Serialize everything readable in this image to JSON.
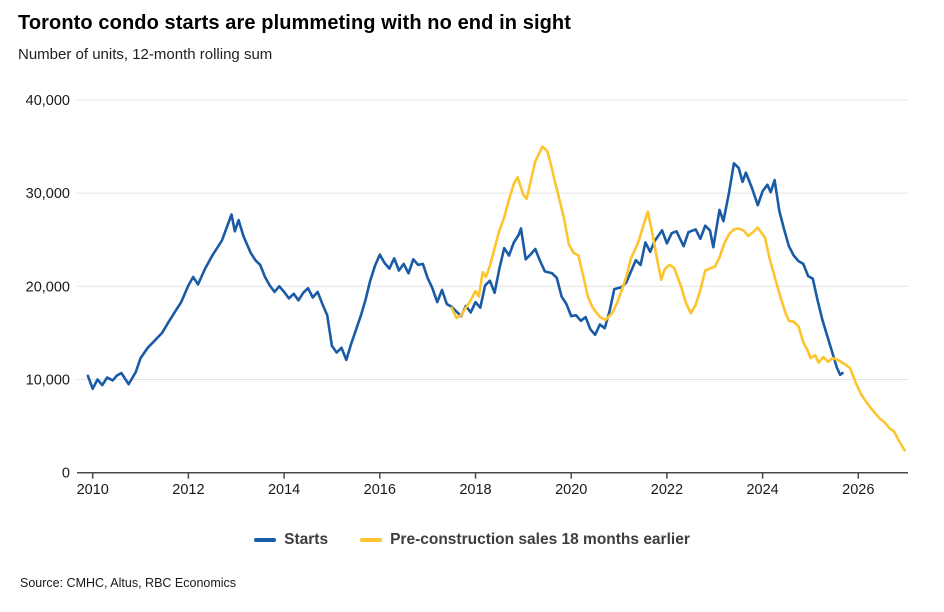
{
  "header": {
    "title": "Toronto condo starts are plummeting with no end in sight",
    "subtitle": "Number of units, 12-month rolling sum"
  },
  "footer": {
    "source": "Source: CMHC, Altus, RBC Economics"
  },
  "legend": {
    "items": [
      {
        "id": "starts",
        "label": "Starts",
        "color": "#1a5ba6"
      },
      {
        "id": "presales",
        "label": "Pre-construction sales 18 months earlier",
        "color": "#fdc42e"
      }
    ]
  },
  "colors": {
    "starts": "#1a5ba6",
    "presales": "#fdc42e",
    "grid": "#e4e4e4",
    "axis": "#4a4a4a",
    "tick_text": "#1a1a1a",
    "legend_text": "#3e3e3e"
  },
  "chart_data": {
    "type": "line",
    "title": "Toronto condo starts are plummeting with no end in sight",
    "subtitle": "Number of units, 12-month rolling sum",
    "xlabel": "",
    "ylabel": "Number of units, 12-month rolling sum",
    "xlim": [
      2009.8,
      2027.1
    ],
    "ylim": [
      0,
      40000
    ],
    "grid": "horizontal",
    "legend_position": "bottom-center",
    "x_ticks": [
      {
        "value": 2010,
        "label": "2010"
      },
      {
        "value": 2012,
        "label": "2012"
      },
      {
        "value": 2014,
        "label": "2014"
      },
      {
        "value": 2016,
        "label": "2016"
      },
      {
        "value": 2018,
        "label": "2018"
      },
      {
        "value": 2020,
        "label": "2020"
      },
      {
        "value": 2022,
        "label": "2022"
      },
      {
        "value": 2024,
        "label": "2024"
      },
      {
        "value": 2026,
        "label": "2026"
      }
    ],
    "y_ticks": [
      {
        "value": 0,
        "label": "0"
      },
      {
        "value": 10000,
        "label": "10,000"
      },
      {
        "value": 20000,
        "label": "20,000"
      },
      {
        "value": 30000,
        "label": "30,000"
      },
      {
        "value": 40000,
        "label": "40,000"
      }
    ],
    "series": [
      {
        "id": "starts",
        "name": "Starts",
        "color": "#1a5ba6",
        "points": [
          [
            2009.9,
            10400
          ],
          [
            2010.0,
            9000
          ],
          [
            2010.1,
            10000
          ],
          [
            2010.2,
            9400
          ],
          [
            2010.3,
            10200
          ],
          [
            2010.42,
            9900
          ],
          [
            2010.5,
            10400
          ],
          [
            2010.6,
            10700
          ],
          [
            2010.75,
            9500
          ],
          [
            2010.9,
            10800
          ],
          [
            2011.0,
            12300
          ],
          [
            2011.15,
            13400
          ],
          [
            2011.3,
            14200
          ],
          [
            2011.45,
            15000
          ],
          [
            2011.6,
            16300
          ],
          [
            2011.75,
            17500
          ],
          [
            2011.85,
            18300
          ],
          [
            2012.0,
            20100
          ],
          [
            2012.1,
            21000
          ],
          [
            2012.2,
            20200
          ],
          [
            2012.35,
            21900
          ],
          [
            2012.5,
            23300
          ],
          [
            2012.6,
            24100
          ],
          [
            2012.7,
            24900
          ],
          [
            2012.8,
            26300
          ],
          [
            2012.9,
            27700
          ],
          [
            2012.97,
            25900
          ],
          [
            2013.05,
            27100
          ],
          [
            2013.15,
            25400
          ],
          [
            2013.3,
            23600
          ],
          [
            2013.4,
            22800
          ],
          [
            2013.5,
            22300
          ],
          [
            2013.6,
            21000
          ],
          [
            2013.7,
            20100
          ],
          [
            2013.8,
            19400
          ],
          [
            2013.9,
            20000
          ],
          [
            2014.0,
            19400
          ],
          [
            2014.1,
            18700
          ],
          [
            2014.2,
            19200
          ],
          [
            2014.3,
            18500
          ],
          [
            2014.4,
            19300
          ],
          [
            2014.5,
            19800
          ],
          [
            2014.6,
            18800
          ],
          [
            2014.7,
            19400
          ],
          [
            2014.8,
            18100
          ],
          [
            2014.9,
            16900
          ],
          [
            2015.0,
            13600
          ],
          [
            2015.1,
            12900
          ],
          [
            2015.2,
            13400
          ],
          [
            2015.3,
            12100
          ],
          [
            2015.4,
            13800
          ],
          [
            2015.5,
            15300
          ],
          [
            2015.6,
            16800
          ],
          [
            2015.7,
            18500
          ],
          [
            2015.8,
            20600
          ],
          [
            2015.9,
            22200
          ],
          [
            2016.0,
            23400
          ],
          [
            2016.1,
            22500
          ],
          [
            2016.2,
            21900
          ],
          [
            2016.3,
            23000
          ],
          [
            2016.4,
            21700
          ],
          [
            2016.5,
            22400
          ],
          [
            2016.6,
            21400
          ],
          [
            2016.7,
            22900
          ],
          [
            2016.8,
            22300
          ],
          [
            2016.9,
            22400
          ],
          [
            2017.0,
            20900
          ],
          [
            2017.1,
            19800
          ],
          [
            2017.2,
            18300
          ],
          [
            2017.3,
            19600
          ],
          [
            2017.4,
            18100
          ],
          [
            2017.5,
            17800
          ],
          [
            2017.6,
            17300
          ],
          [
            2017.7,
            16800
          ],
          [
            2017.8,
            17900
          ],
          [
            2017.9,
            17200
          ],
          [
            2018.0,
            18300
          ],
          [
            2018.1,
            17700
          ],
          [
            2018.2,
            20100
          ],
          [
            2018.3,
            20600
          ],
          [
            2018.4,
            19300
          ],
          [
            2018.5,
            21900
          ],
          [
            2018.6,
            24100
          ],
          [
            2018.7,
            23300
          ],
          [
            2018.8,
            24700
          ],
          [
            2018.9,
            25500
          ],
          [
            2018.95,
            26200
          ],
          [
            2019.05,
            22900
          ],
          [
            2019.15,
            23400
          ],
          [
            2019.25,
            24000
          ],
          [
            2019.35,
            22700
          ],
          [
            2019.45,
            21600
          ],
          [
            2019.6,
            21400
          ],
          [
            2019.7,
            20900
          ],
          [
            2019.8,
            18900
          ],
          [
            2019.9,
            18100
          ],
          [
            2020.0,
            16800
          ],
          [
            2020.1,
            16900
          ],
          [
            2020.2,
            16300
          ],
          [
            2020.3,
            16700
          ],
          [
            2020.4,
            15400
          ],
          [
            2020.5,
            14800
          ],
          [
            2020.6,
            15900
          ],
          [
            2020.7,
            15500
          ],
          [
            2020.8,
            17300
          ],
          [
            2020.9,
            19700
          ],
          [
            2021.05,
            19900
          ],
          [
            2021.15,
            20400
          ],
          [
            2021.25,
            21600
          ],
          [
            2021.35,
            22800
          ],
          [
            2021.45,
            22300
          ],
          [
            2021.55,
            24700
          ],
          [
            2021.65,
            23700
          ],
          [
            2021.75,
            24900
          ],
          [
            2021.9,
            26000
          ],
          [
            2022.0,
            24600
          ],
          [
            2022.1,
            25700
          ],
          [
            2022.2,
            25900
          ],
          [
            2022.35,
            24300
          ],
          [
            2022.45,
            25800
          ],
          [
            2022.6,
            26100
          ],
          [
            2022.7,
            25100
          ],
          [
            2022.8,
            26500
          ],
          [
            2022.9,
            26000
          ],
          [
            2022.97,
            24200
          ],
          [
            2023.1,
            28200
          ],
          [
            2023.18,
            27000
          ],
          [
            2023.3,
            30100
          ],
          [
            2023.4,
            33200
          ],
          [
            2023.5,
            32700
          ],
          [
            2023.58,
            31200
          ],
          [
            2023.65,
            32200
          ],
          [
            2023.78,
            30500
          ],
          [
            2023.9,
            28700
          ],
          [
            2024.0,
            30200
          ],
          [
            2024.1,
            30900
          ],
          [
            2024.17,
            30100
          ],
          [
            2024.25,
            31400
          ],
          [
            2024.35,
            28100
          ],
          [
            2024.45,
            26100
          ],
          [
            2024.55,
            24300
          ],
          [
            2024.65,
            23300
          ],
          [
            2024.75,
            22700
          ],
          [
            2024.85,
            22400
          ],
          [
            2024.95,
            21100
          ],
          [
            2025.05,
            20800
          ],
          [
            2025.15,
            18500
          ],
          [
            2025.25,
            16400
          ],
          [
            2025.35,
            14700
          ],
          [
            2025.45,
            13000
          ],
          [
            2025.55,
            11300
          ],
          [
            2025.62,
            10500
          ],
          [
            2025.67,
            10700
          ]
        ]
      },
      {
        "id": "presales",
        "name": "Pre-construction sales 18 months earlier",
        "color": "#fdc42e",
        "points": [
          [
            2017.5,
            17700
          ],
          [
            2017.6,
            16600
          ],
          [
            2017.7,
            16900
          ],
          [
            2017.8,
            17700
          ],
          [
            2017.9,
            18500
          ],
          [
            2018.0,
            19500
          ],
          [
            2018.07,
            18900
          ],
          [
            2018.15,
            21500
          ],
          [
            2018.22,
            21000
          ],
          [
            2018.3,
            22200
          ],
          [
            2018.4,
            24100
          ],
          [
            2018.5,
            26000
          ],
          [
            2018.6,
            27400
          ],
          [
            2018.7,
            29300
          ],
          [
            2018.8,
            31000
          ],
          [
            2018.88,
            31700
          ],
          [
            2019.0,
            29800
          ],
          [
            2019.07,
            29400
          ],
          [
            2019.15,
            31200
          ],
          [
            2019.25,
            33400
          ],
          [
            2019.4,
            35000
          ],
          [
            2019.5,
            34500
          ],
          [
            2019.58,
            33000
          ],
          [
            2019.65,
            31400
          ],
          [
            2019.75,
            29400
          ],
          [
            2019.85,
            27300
          ],
          [
            2019.95,
            24500
          ],
          [
            2020.05,
            23600
          ],
          [
            2020.15,
            23300
          ],
          [
            2020.25,
            21100
          ],
          [
            2020.35,
            18900
          ],
          [
            2020.45,
            17700
          ],
          [
            2020.6,
            16700
          ],
          [
            2020.72,
            16400
          ],
          [
            2020.85,
            17100
          ],
          [
            2020.95,
            18100
          ],
          [
            2021.05,
            19500
          ],
          [
            2021.15,
            21000
          ],
          [
            2021.25,
            23000
          ],
          [
            2021.4,
            24700
          ],
          [
            2021.5,
            26400
          ],
          [
            2021.6,
            28000
          ],
          [
            2021.7,
            25600
          ],
          [
            2021.8,
            22800
          ],
          [
            2021.88,
            20700
          ],
          [
            2021.95,
            21800
          ],
          [
            2022.05,
            22300
          ],
          [
            2022.15,
            22000
          ],
          [
            2022.3,
            19900
          ],
          [
            2022.4,
            18200
          ],
          [
            2022.5,
            17100
          ],
          [
            2022.6,
            18000
          ],
          [
            2022.7,
            19600
          ],
          [
            2022.8,
            21700
          ],
          [
            2022.9,
            21900
          ],
          [
            2023.0,
            22100
          ],
          [
            2023.1,
            23100
          ],
          [
            2023.2,
            24600
          ],
          [
            2023.3,
            25600
          ],
          [
            2023.4,
            26100
          ],
          [
            2023.5,
            26200
          ],
          [
            2023.6,
            26000
          ],
          [
            2023.7,
            25400
          ],
          [
            2023.8,
            25800
          ],
          [
            2023.9,
            26300
          ],
          [
            2024.05,
            25200
          ],
          [
            2024.15,
            22900
          ],
          [
            2024.27,
            20700
          ],
          [
            2024.37,
            18900
          ],
          [
            2024.48,
            17100
          ],
          [
            2024.55,
            16300
          ],
          [
            2024.65,
            16200
          ],
          [
            2024.75,
            15700
          ],
          [
            2024.85,
            14000
          ],
          [
            2024.95,
            13000
          ],
          [
            2025.0,
            12300
          ],
          [
            2025.1,
            12600
          ],
          [
            2025.17,
            11800
          ],
          [
            2025.27,
            12400
          ],
          [
            2025.37,
            11900
          ],
          [
            2025.46,
            12300
          ],
          [
            2025.57,
            12100
          ],
          [
            2025.73,
            11600
          ],
          [
            2025.83,
            11200
          ],
          [
            2025.95,
            9600
          ],
          [
            2026.05,
            8500
          ],
          [
            2026.15,
            7700
          ],
          [
            2026.25,
            7000
          ],
          [
            2026.35,
            6400
          ],
          [
            2026.45,
            5800
          ],
          [
            2026.55,
            5400
          ],
          [
            2026.65,
            4800
          ],
          [
            2026.75,
            4400
          ],
          [
            2026.85,
            3400
          ],
          [
            2026.97,
            2400
          ]
        ]
      }
    ]
  }
}
